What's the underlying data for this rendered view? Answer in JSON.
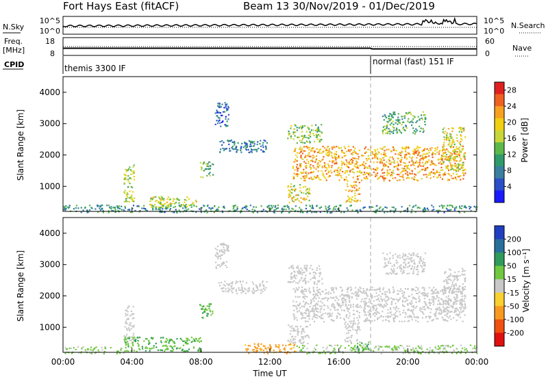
{
  "header": {
    "station": "Fort Hays East (fitACF)",
    "beam_date": "Beam 13  30/Nov/2019 - 01/Dec/2019"
  },
  "top_panels": {
    "nsky_label": "N.Sky",
    "nsearch_label": "N.Search",
    "nsky_ticks": [
      "10^5",
      "10^0"
    ],
    "nsearch_ticks": [
      "10^5",
      "10^0"
    ],
    "freq_label": "Freq.",
    "freq_unit": "[MHz]",
    "freq_ticks": [
      "18",
      "8"
    ],
    "nave_label": "Nave",
    "nave_ticks": [
      "60",
      "0"
    ],
    "cpid_label": "CPID",
    "cpid_segments": [
      {
        "start_hour": 0,
        "label": "themis 3300 IF"
      },
      {
        "start_hour": 18,
        "label": "normal (fast) 151 IF"
      }
    ]
  },
  "chart_data": [
    {
      "type": "heatmap",
      "name": "power",
      "ylabel": "Slant Range [km]",
      "ylim": [
        200,
        4500
      ],
      "yticks": [
        "4000",
        "3000",
        "2000",
        "1000"
      ],
      "ytick_values": [
        4000,
        3000,
        2000,
        1000
      ],
      "xlim": [
        0,
        24
      ],
      "colorbar_label": "Power [dB]",
      "colorbar_ticks": [
        "28",
        "24",
        "20",
        "16",
        "12",
        "8",
        "4"
      ],
      "colorbar_tick_values": [
        28,
        24,
        20,
        16,
        12,
        8,
        4
      ],
      "colorbar_range": [
        0,
        30
      ],
      "colors": [
        "#1a1aff",
        "#2b4fc9",
        "#3a7fa0",
        "#2f9a6a",
        "#5db84a",
        "#c8d63a",
        "#f0d010",
        "#f8a020",
        "#f06020",
        "#e02020"
      ],
      "regions": [
        {
          "x": [
            0.0,
            24.0
          ],
          "y": [
            180,
            420
          ],
          "value": 10
        },
        {
          "x": [
            13.3,
            23.3
          ],
          "y": [
            1200,
            2300
          ],
          "value": 22
        },
        {
          "x": [
            13.0,
            15.0
          ],
          "y": [
            2400,
            3000
          ],
          "value": 14
        },
        {
          "x": [
            16.3,
            17.2
          ],
          "y": [
            500,
            1200
          ],
          "value": 21
        },
        {
          "x": [
            13.0,
            14.3
          ],
          "y": [
            500,
            1100
          ],
          "value": 18
        },
        {
          "x": [
            7.9,
            8.7
          ],
          "y": [
            1300,
            1800
          ],
          "value": 12
        },
        {
          "x": [
            3.5,
            4.1
          ],
          "y": [
            500,
            1700
          ],
          "value": 16
        },
        {
          "x": [
            9.0,
            11.8
          ],
          "y": [
            2100,
            2500
          ],
          "value": 8
        },
        {
          "x": [
            18.5,
            21.0
          ],
          "y": [
            2700,
            3400
          ],
          "value": 12
        },
        {
          "x": [
            22.0,
            23.3
          ],
          "y": [
            1500,
            2900
          ],
          "value": 18
        },
        {
          "x": [
            5.0,
            7.7
          ],
          "y": [
            350,
            700
          ],
          "value": 17
        },
        {
          "x": [
            8.8,
            9.6
          ],
          "y": [
            2900,
            3700
          ],
          "value": 6
        }
      ]
    },
    {
      "type": "heatmap",
      "name": "velocity",
      "ylabel": "Slant Range [km]",
      "ylim": [
        200,
        4500
      ],
      "yticks": [
        "4000",
        "3000",
        "2000",
        "1000"
      ],
      "ytick_values": [
        4000,
        3000,
        2000,
        1000
      ],
      "xlim": [
        0,
        24
      ],
      "xlabel": "Time UT",
      "xticks": [
        "00:00",
        "04:00",
        "08:00",
        "12:00",
        "16:00",
        "20:00",
        "00:00"
      ],
      "xtick_values": [
        0,
        4,
        8,
        12,
        16,
        20,
        24
      ],
      "colorbar_label": "Velocity [m s⁻¹]",
      "colorbar_ticks": [
        "200",
        "100",
        "50",
        "15",
        "-15",
        "-50",
        "-100",
        "-200"
      ],
      "colorbar_tick_values": [
        200,
        100,
        50,
        15,
        -15,
        -50,
        -100,
        -200
      ],
      "colors": [
        "#1f3fc0",
        "#2a6f9a",
        "#2f9a5a",
        "#70c840",
        "#c8c8c8",
        "#f8d030",
        "#f89a20",
        "#f05010",
        "#e01010"
      ],
      "regions": [
        {
          "x": [
            13.3,
            23.3
          ],
          "y": [
            1200,
            2300
          ],
          "value": 0
        },
        {
          "x": [
            13.0,
            15.0
          ],
          "y": [
            2400,
            3000
          ],
          "value": 0
        },
        {
          "x": [
            16.3,
            17.2
          ],
          "y": [
            500,
            1200
          ],
          "value": 0
        },
        {
          "x": [
            13.0,
            14.3
          ],
          "y": [
            500,
            1100
          ],
          "value": 0
        },
        {
          "x": [
            7.9,
            8.7
          ],
          "y": [
            1300,
            1800
          ],
          "value": 45
        },
        {
          "x": [
            3.5,
            4.1
          ],
          "y": [
            500,
            1700
          ],
          "value": 0
        },
        {
          "x": [
            9.0,
            11.8
          ],
          "y": [
            2100,
            2500
          ],
          "value": 0
        },
        {
          "x": [
            18.5,
            21.0
          ],
          "y": [
            2700,
            3400
          ],
          "value": 0
        },
        {
          "x": [
            22.0,
            23.3
          ],
          "y": [
            1500,
            2900
          ],
          "value": 0
        },
        {
          "x": [
            3.5,
            8.0
          ],
          "y": [
            250,
            700
          ],
          "value": 45
        },
        {
          "x": [
            10.5,
            13.5
          ],
          "y": [
            180,
            500
          ],
          "value": -60
        },
        {
          "x": [
            0.0,
            3.5
          ],
          "y": [
            180,
            400
          ],
          "value": 20
        },
        {
          "x": [
            13.5,
            24.0
          ],
          "y": [
            180,
            450
          ],
          "value": 20
        },
        {
          "x": [
            16.8,
            17.8
          ],
          "y": [
            250,
            550
          ],
          "value": 50
        },
        {
          "x": [
            8.8,
            9.6
          ],
          "y": [
            2900,
            3700
          ],
          "value": 0
        }
      ]
    }
  ]
}
